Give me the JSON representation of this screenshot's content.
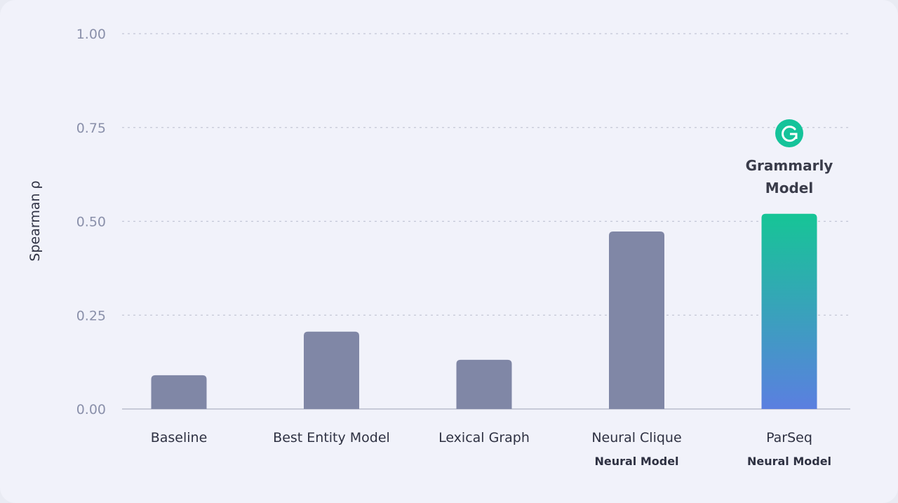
{
  "chart_data": {
    "type": "bar",
    "title": "",
    "xlabel": "",
    "ylabel": "Spearman ρ",
    "ylim": [
      0,
      1
    ],
    "yticks": [
      "0.00",
      "0.25",
      "0.50",
      "0.75",
      "1.00"
    ],
    "ytick_values": [
      0,
      0.25,
      0.5,
      0.75,
      1.0
    ],
    "grid": "horizontal dotted",
    "categories": [
      "Baseline",
      "Best Entity Model",
      "Lexical Graph",
      "Neural Clique",
      "ParSeq"
    ],
    "sublabels": [
      "",
      "",
      "",
      "Neural Model",
      "Neural Model"
    ],
    "values": [
      0.09,
      0.206,
      0.131,
      0.473,
      0.52
    ],
    "bar_colors": [
      "#8087a6",
      "#8087a6",
      "#8087a6",
      "#8087a6",
      "gradient"
    ],
    "highlight_gradient": [
      "#16c596",
      "#5b7fe0"
    ],
    "annotation": {
      "lines": [
        "Grammarly",
        "Model"
      ],
      "category": "ParSeq",
      "icon": "grammarly-logo-icon",
      "icon_color": "#15c39a"
    }
  }
}
